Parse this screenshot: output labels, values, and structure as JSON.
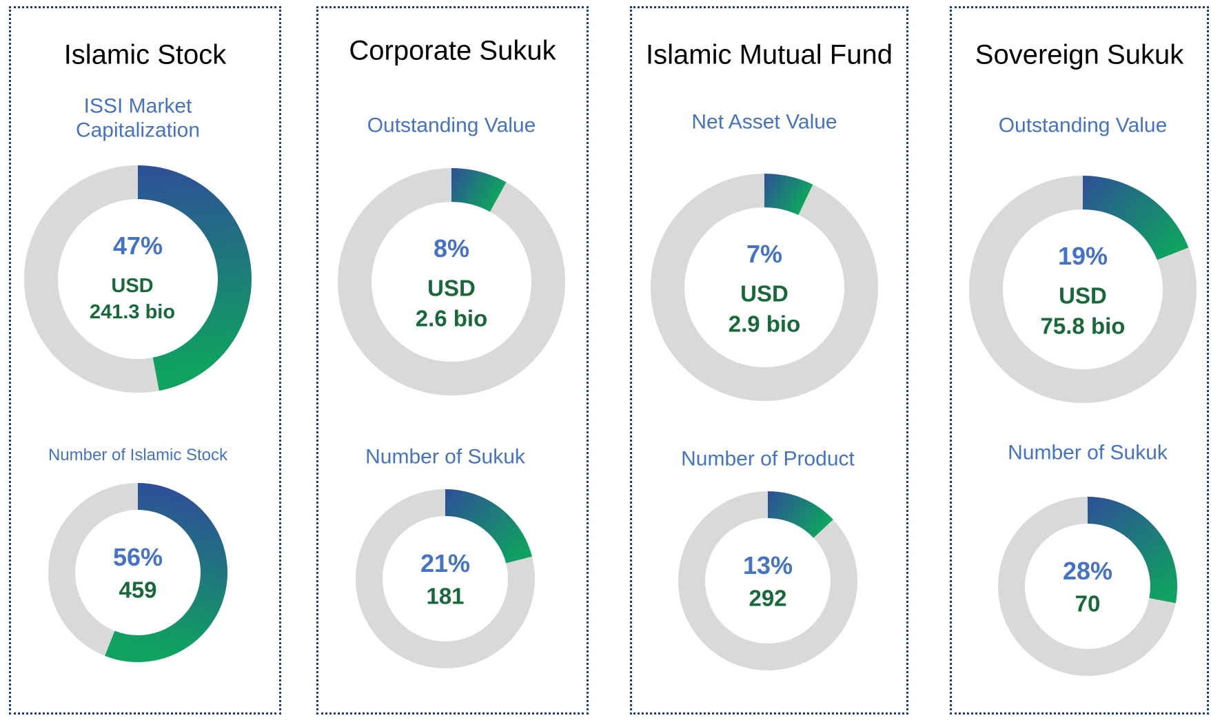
{
  "panels": [
    {
      "title": "Islamic Stock",
      "charts": [
        {
          "type": "donut",
          "label": "ISSI Market Capitalization",
          "values": [
            47
          ],
          "value_labels": [
            "47%"
          ],
          "amount": [
            "USD",
            "241.3 bio"
          ]
        },
        {
          "type": "donut",
          "label": "Number of Islamic Stock",
          "values": [
            56
          ],
          "value_labels": [
            "56%"
          ],
          "count": 459
        }
      ]
    },
    {
      "title": "Corporate Sukuk",
      "charts": [
        {
          "type": "donut",
          "label": "Outstanding Value",
          "values": [
            8
          ],
          "value_labels": [
            "8%"
          ],
          "amount": [
            "USD",
            "2.6 bio"
          ]
        },
        {
          "type": "donut",
          "label": "Number of Sukuk",
          "values": [
            21
          ],
          "value_labels": [
            "21%"
          ],
          "count": 181
        }
      ]
    },
    {
      "title": "Islamic Mutual Fund",
      "charts": [
        {
          "type": "donut",
          "label": "Net Asset Value",
          "values": [
            7
          ],
          "value_labels": [
            "7%"
          ],
          "amount": [
            "USD",
            "2.9 bio"
          ]
        },
        {
          "type": "donut",
          "label": "Number of Product",
          "values": [
            13
          ],
          "value_labels": [
            "13%"
          ],
          "count": 292
        }
      ]
    },
    {
      "title": "Sovereign Sukuk",
      "charts": [
        {
          "type": "donut",
          "label": "Outstanding Value",
          "values": [
            19
          ],
          "value_labels": [
            "19%"
          ],
          "amount": [
            "USD",
            "75.8 bio"
          ]
        },
        {
          "type": "donut",
          "label": "Number of Sukuk",
          "values": [
            28
          ],
          "value_labels": [
            "28%"
          ],
          "count": 70
        }
      ]
    }
  ]
}
